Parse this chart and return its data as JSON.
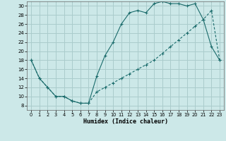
{
  "xlabel": "Humidex (Indice chaleur)",
  "xlim": [
    -0.5,
    23.5
  ],
  "ylim": [
    7,
    31
  ],
  "yticks": [
    8,
    10,
    12,
    14,
    16,
    18,
    20,
    22,
    24,
    26,
    28,
    30
  ],
  "xticks": [
    0,
    1,
    2,
    3,
    4,
    5,
    6,
    7,
    8,
    9,
    10,
    11,
    12,
    13,
    14,
    15,
    16,
    17,
    18,
    19,
    20,
    21,
    22,
    23
  ],
  "bg_color": "#cce8e8",
  "grid_color": "#aacccc",
  "line_color": "#1a6b6b",
  "line1_x": [
    0,
    1,
    2,
    3,
    4,
    5,
    6,
    7,
    8,
    9,
    10,
    11,
    12,
    13,
    14,
    15,
    16,
    17,
    18,
    19,
    20,
    21,
    22,
    23
  ],
  "line1_y": [
    18,
    14,
    12,
    10,
    10,
    9,
    8.5,
    8.5,
    14.5,
    19,
    22,
    26,
    28.5,
    29,
    28.5,
    30.5,
    31,
    30.5,
    30.5,
    30,
    30.5,
    27,
    21,
    18
  ],
  "line2_x": [
    0,
    1,
    2,
    3,
    4,
    5,
    6,
    7,
    8,
    9,
    10,
    11,
    12,
    13,
    14,
    15,
    16,
    17,
    18,
    19,
    20,
    21,
    22,
    23
  ],
  "line2_y": [
    18,
    14,
    12,
    10,
    10,
    9,
    8.5,
    8.5,
    11,
    12,
    13,
    14,
    15,
    16,
    17,
    18,
    19.5,
    21,
    22.5,
    24,
    25.5,
    27,
    29,
    18
  ]
}
